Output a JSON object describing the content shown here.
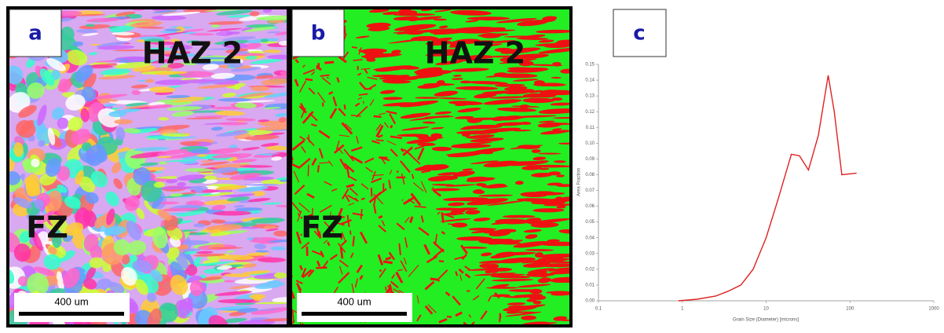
{
  "panels": [
    {
      "label": "a",
      "region_labels": [
        "HAZ 2",
        "FZ"
      ],
      "scale_bar": "400 um"
    },
    {
      "label": "b",
      "region_labels": [
        "HAZ 2",
        "FZ"
      ],
      "scale_bar": "400 um"
    },
    {
      "label": "c"
    }
  ],
  "chart_data": {
    "type": "line",
    "x_label": "Grain Size (Diameter) [microns]",
    "y_label": "Area Fraction",
    "x_log": true,
    "xlim": [
      0.1,
      1000
    ],
    "xticks": [
      0.1,
      1,
      10,
      100,
      1000
    ],
    "ylim": [
      0,
      0.15
    ],
    "yticks": [
      {
        "value": 0,
        "label": "0.00"
      },
      {
        "value": 0.01,
        "label": "0.01"
      },
      {
        "value": 0.02,
        "label": "0.02"
      },
      {
        "value": 0.03,
        "label": "0.03"
      },
      {
        "value": 0.04,
        "label": "0.04"
      },
      {
        "value": 0.05,
        "label": "0.05"
      },
      {
        "value": 0.06,
        "label": "0.06"
      },
      {
        "value": 0.07,
        "label": "0.07"
      },
      {
        "value": 0.08,
        "label": "0.08"
      },
      {
        "value": 0.09,
        "label": "0.09"
      },
      {
        "value": 0.1,
        "label": "0.10"
      },
      {
        "value": 0.11,
        "label": "0.11"
      },
      {
        "value": 0.12,
        "label": "0.12"
      },
      {
        "value": 0.13,
        "label": "0.13"
      },
      {
        "value": 0.14,
        "label": "0.14"
      },
      {
        "value": 0.15,
        "label": "0.15"
      }
    ],
    "series": [
      {
        "color": "#e02020",
        "x": [
          0.9,
          1.5,
          2.5,
          3.5,
          5,
          7,
          10,
          14,
          20,
          25,
          32,
          42,
          55,
          65,
          80,
          120
        ],
        "values": [
          0,
          0.001,
          0.003,
          0.006,
          0.01,
          0.02,
          0.04,
          0.065,
          0.093,
          0.092,
          0.083,
          0.105,
          0.143,
          0.12,
          0.08,
          0.081
        ]
      }
    ]
  }
}
